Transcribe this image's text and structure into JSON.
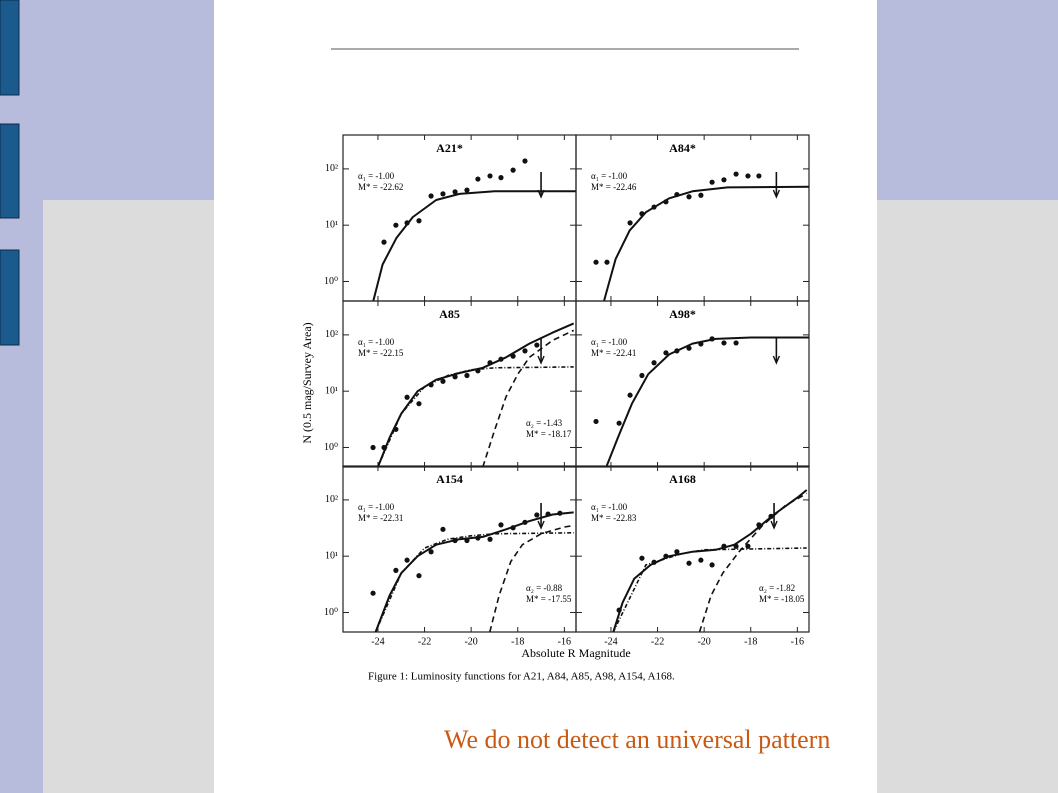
{
  "slide": {
    "text": "We do not detect an universal pattern"
  },
  "chart_data": {
    "type": "scatter",
    "xlabel": "Absolute R Magnitude",
    "ylabel": "N (0.5 mag/Survey Area)",
    "caption": "Figure 1: Luminosity functions for A21, A84, A85, A98, A154, A168.",
    "xlim": [
      -25.5,
      -15.5
    ],
    "xticks": [
      -24,
      -22,
      -20,
      -18,
      -16
    ],
    "ylim": [
      0.45,
      400
    ],
    "log_y": true,
    "yticks": [
      {
        "value": 1,
        "label": "10⁰"
      },
      {
        "value": 10,
        "label": "10¹"
      },
      {
        "value": 100,
        "label": "10²"
      }
    ],
    "panels": [
      {
        "title": "A21*",
        "labels": [
          "α₁ = -1.00",
          "M* = -22.62"
        ],
        "limit": -17,
        "points": {
          "x": [
            -23.74,
            -23.23,
            -22.75,
            -22.24,
            -21.72,
            -21.21,
            -20.69,
            -20.18,
            -19.71,
            -19.19,
            -18.72,
            -18.2,
            -17.69
          ],
          "y": [
            5,
            10,
            11,
            12,
            33,
            36,
            39,
            42,
            66,
            75,
            70,
            95,
            138
          ]
        },
        "curves": [
          {
            "style": "solid",
            "x": [
              -24.2,
              -23.8,
              -23.2,
              -22.5,
              -21.5,
              -20.5,
              -19,
              -15.5
            ],
            "y": [
              0.45,
              2,
              6,
              14,
              28,
              36,
              40,
              40
            ]
          }
        ]
      },
      {
        "title": "A84*",
        "labels": [
          "α₁ = -1.00",
          "M* = -22.46"
        ],
        "limit": -16.9,
        "points": {
          "x": [
            -24.64,
            -24.17,
            -23.18,
            -22.67,
            -22.15,
            -21.64,
            -21.17,
            -20.65,
            -20.14,
            -19.66,
            -19.15,
            -18.63,
            -18.12,
            -17.65
          ],
          "y": [
            2.2,
            2.2,
            11,
            16,
            21,
            26,
            35,
            32,
            34,
            58,
            64,
            81,
            75,
            75
          ]
        },
        "curves": [
          {
            "style": "solid",
            "x": [
              -24.3,
              -23.8,
              -23.2,
              -22.5,
              -21.5,
              -20.5,
              -19,
              -15.5
            ],
            "y": [
              0.45,
              2.5,
              8,
              17,
              30,
              40,
              47,
              48
            ]
          }
        ]
      },
      {
        "title": "A85",
        "labels": [
          "α₁ = -1.00",
          "M* = -22.15",
          "α₂ = -1.43",
          "M* = -18.17"
        ],
        "limit": -17,
        "points": {
          "x": [
            -24.21,
            -23.74,
            -23.23,
            -22.75,
            -22.24,
            -21.72,
            -21.21,
            -20.69,
            -20.18,
            -19.71,
            -19.19,
            -18.72,
            -18.2,
            -17.69,
            -17.18
          ],
          "y": [
            1,
            1,
            2.1,
            7.8,
            6,
            13,
            15,
            18,
            19,
            23,
            32,
            37,
            42,
            52,
            66
          ]
        },
        "curves": [
          {
            "style": "solid",
            "x": [
              -24,
              -23.5,
              -23,
              -22.3,
              -21.5,
              -20.5,
              -19.5,
              -18.5,
              -17.5,
              -16.5,
              -15.6
            ],
            "y": [
              0.45,
              1.5,
              4,
              10,
              16,
              21,
              26,
              40,
              70,
              110,
              160
            ]
          },
          {
            "style": "dashed",
            "x": [
              -19.5,
              -19,
              -18.5,
              -18,
              -17.5,
              -16.5,
              -15.6
            ],
            "y": [
              0.45,
              2,
              8,
              20,
              40,
              80,
              120
            ]
          },
          {
            "style": "dashdot",
            "x": [
              -24,
              -23,
              -22,
              -21,
              -20,
              -19,
              -15.6
            ],
            "y": [
              0.45,
              4,
              12,
              19,
              24,
              26,
              27
            ]
          }
        ]
      },
      {
        "title": "A98*",
        "labels": [
          "α₁ = -1.00",
          "M* = -22.41"
        ],
        "limit": -16.9,
        "points": {
          "x": [
            -24.64,
            -23.65,
            -23.18,
            -22.67,
            -22.15,
            -21.64,
            -21.17,
            -20.65,
            -20.14,
            -19.66,
            -19.15,
            -18.63
          ],
          "y": [
            2.9,
            2.7,
            8.5,
            19,
            32,
            48,
            52,
            58,
            69,
            85,
            72,
            72
          ]
        },
        "curves": [
          {
            "style": "solid",
            "x": [
              -24.2,
              -23.7,
              -23.1,
              -22.4,
              -21.5,
              -20.5,
              -19.5,
              -18,
              -15.5
            ],
            "y": [
              0.45,
              1.5,
              6,
              20,
              45,
              70,
              85,
              90,
              90
            ]
          }
        ]
      },
      {
        "title": "A154",
        "labels": [
          "α₁ = -1.00",
          "M* = -22.31",
          "α₂ = -0.88",
          "M* = -17.55"
        ],
        "limit": -17,
        "points": {
          "x": [
            -24.21,
            -23.23,
            -22.75,
            -22.24,
            -21.72,
            -21.21,
            -20.69,
            -20.18,
            -19.71,
            -19.19,
            -18.72,
            -18.2,
            -17.69,
            -17.18,
            -16.7,
            -16.19
          ],
          "y": [
            2.2,
            5.6,
            8.5,
            4.5,
            12,
            30,
            19,
            19,
            21,
            20,
            36,
            32,
            40,
            54,
            56,
            58
          ]
        },
        "curves": [
          {
            "style": "solid",
            "x": [
              -24.1,
              -23.5,
              -23,
              -22.3,
              -21.5,
              -20.5,
              -19.5,
              -18.5,
              -17.5,
              -16.5,
              -15.6
            ],
            "y": [
              0.45,
              2,
              5,
              10,
              16,
              20,
              22,
              30,
              42,
              55,
              60
            ]
          },
          {
            "style": "dashed",
            "x": [
              -19.2,
              -18.8,
              -18.3,
              -17.8,
              -17,
              -16,
              -15.6
            ],
            "y": [
              0.45,
              2,
              8,
              16,
              25,
              33,
              35
            ]
          },
          {
            "style": "dashdot",
            "x": [
              -24.1,
              -23,
              -22,
              -21,
              -20,
              -19,
              -15.6
            ],
            "y": [
              0.45,
              5,
              14,
              20,
              23,
              25,
              26
            ]
          }
        ]
      },
      {
        "title": "A168",
        "labels": [
          "α₁ = -1.00",
          "M* = -22.83",
          "α₂ = -1.82",
          "M* = -18.05"
        ],
        "limit": -17,
        "points": {
          "x": [
            -23.65,
            -22.67,
            -22.15,
            -21.64,
            -21.17,
            -20.65,
            -20.14,
            -19.66,
            -19.15,
            -18.63,
            -18.12,
            -17.65,
            -17.13
          ],
          "y": [
            1.1,
            9.2,
            7.8,
            10,
            12,
            7.5,
            8.5,
            7,
            15,
            15,
            15,
            36,
            51
          ]
        },
        "curves": [
          {
            "style": "solid",
            "x": [
              -23.9,
              -23.5,
              -23,
              -22.3,
              -21.5,
              -20.5,
              -19.5,
              -18.7,
              -18,
              -17,
              -16,
              -15.6
            ],
            "y": [
              0.45,
              1.5,
              4,
              7,
              10,
              12,
              13,
              16,
              25,
              55,
              110,
              150
            ]
          },
          {
            "style": "dashed",
            "x": [
              -20.2,
              -19.7,
              -19.2,
              -18.5,
              -17.5,
              -16.5,
              -15.6
            ],
            "y": [
              0.45,
              2,
              5,
              12,
              35,
              80,
              130
            ]
          },
          {
            "style": "dashdot",
            "x": [
              -23.9,
              -22.5,
              -21,
              -20,
              -15.6
            ],
            "y": [
              0.45,
              7,
              11,
              13,
              14
            ]
          }
        ]
      }
    ]
  }
}
